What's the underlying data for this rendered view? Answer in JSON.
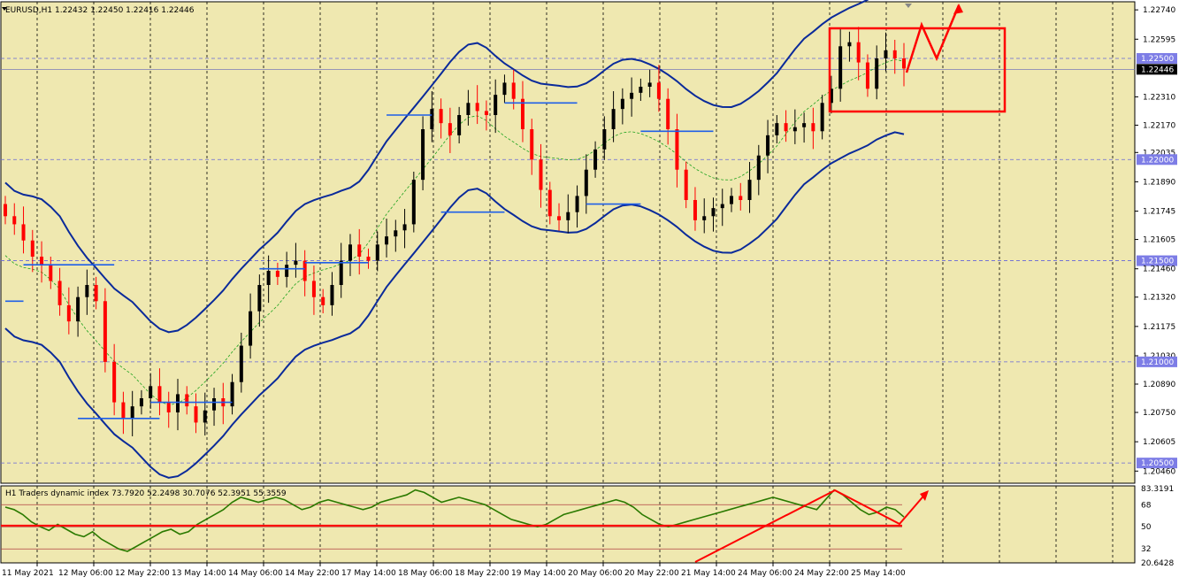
{
  "window": {
    "main_title": "EURUSD,H1",
    "main_ohlc": "1.22432 1.22450 1.22416 1.22446",
    "indicator_title": "H1 Traders dynamic index 73.7920 52.2498 30.7076 52.3951 55.3559"
  },
  "colors": {
    "background": "#efe8b0",
    "bull_candle": "#000000",
    "bear_candle": "#ff0000",
    "bands": "#0a2a9a",
    "mid_band": "#1fa31f",
    "level_line": "#1f5fe8",
    "drawing": "#ff0000",
    "rsi_line": "#2b7a00",
    "price_tag": "#7d7de6"
  },
  "chart_data": [
    {
      "type": "candlestick",
      "symbol": "EURUSD",
      "timeframe": "H1",
      "ylim": [
        1.204,
        1.2278
      ],
      "yticks": [
        "1.22740",
        "1.22595",
        "1.22500",
        "1.22446",
        "1.22310",
        "1.22170",
        "1.22035",
        "1.22000",
        "1.21890",
        "1.21745",
        "1.21605",
        "1.21500",
        "1.21460",
        "1.21320",
        "1.21175",
        "1.21030",
        "1.21000",
        "1.20890",
        "1.20750",
        "1.20605",
        "1.20500",
        "1.20460"
      ],
      "highlighted_levels": [
        "1.22500",
        "1.22000",
        "1.21500",
        "1.21000",
        "1.20500"
      ],
      "current_price": "1.22446",
      "xticks": [
        "11 May 2021",
        "12 May 06:00",
        "12 May 22:00",
        "13 May 14:00",
        "14 May 06:00",
        "14 May 22:00",
        "17 May 14:00",
        "18 May 06:00",
        "18 May 22:00",
        "19 May 14:00",
        "20 May 06:00",
        "20 May 22:00",
        "21 May 14:00",
        "24 May 06:00",
        "24 May 22:00",
        "25 May 14:00"
      ],
      "close_path": [
        1.2172,
        1.2168,
        1.216,
        1.2152,
        1.2148,
        1.214,
        1.2128,
        1.212,
        1.2132,
        1.2138,
        1.213,
        1.21,
        1.208,
        1.2072,
        1.2078,
        1.2082,
        1.2088,
        1.208,
        1.2075,
        1.2084,
        1.2078,
        1.207,
        1.2076,
        1.2082,
        1.2078,
        1.209,
        1.2108,
        1.2125,
        1.2138,
        1.2145,
        1.2142,
        1.2148,
        1.215,
        1.214,
        1.2132,
        1.2128,
        1.2138,
        1.215,
        1.2158,
        1.2152,
        1.215,
        1.2158,
        1.2162,
        1.2165,
        1.2168,
        1.219,
        1.2215,
        1.2225,
        1.2218,
        1.2212,
        1.2222,
        1.2228,
        1.2224,
        1.2222,
        1.2232,
        1.2238,
        1.223,
        1.2215,
        1.22,
        1.2185,
        1.2172,
        1.217,
        1.2174,
        1.2182,
        1.2195,
        1.2205,
        1.2215,
        1.2225,
        1.223,
        1.2233,
        1.2236,
        1.2238,
        1.223,
        1.2215,
        1.2195,
        1.218,
        1.217,
        1.2172,
        1.2176,
        1.2178,
        1.2182,
        1.218,
        1.219,
        1.2202,
        1.2212,
        1.2218,
        1.2214,
        1.2216,
        1.2218,
        1.2214,
        1.2228,
        1.2235,
        1.2256,
        1.2258,
        1.2248,
        1.2235,
        1.225,
        1.2254,
        1.225,
        1.2245
      ],
      "bands_half_width": 0.0036,
      "blue_levels": [
        {
          "price": 1.213,
          "from": 0,
          "to": 2
        },
        {
          "price": 1.2148,
          "from": 2,
          "to": 12
        },
        {
          "price": 1.2072,
          "from": 8,
          "to": 17
        },
        {
          "price": 1.208,
          "from": 16,
          "to": 25
        },
        {
          "price": 1.2146,
          "from": 28,
          "to": 33
        },
        {
          "price": 1.2149,
          "from": 33,
          "to": 40
        },
        {
          "price": 1.2222,
          "from": 42,
          "to": 47
        },
        {
          "price": 1.2174,
          "from": 48,
          "to": 55
        },
        {
          "price": 1.2228,
          "from": 55,
          "to": 63
        },
        {
          "price": 1.2178,
          "from": 64,
          "to": 70
        },
        {
          "price": 1.2214,
          "from": 70,
          "to": 78
        }
      ],
      "annotations": [
        "rectangle around consolidation",
        "zigzag arrow projection up"
      ]
    },
    {
      "type": "line",
      "name": "Traders dynamic index",
      "ylim": [
        20.6428,
        83.3191
      ],
      "yticks": [
        "83.3191",
        "68",
        "50",
        "32",
        "20.6428"
      ],
      "levels": [
        68,
        50,
        32
      ],
      "values": [
        66,
        64,
        60,
        54,
        50,
        47,
        52,
        48,
        44,
        42,
        46,
        40,
        36,
        32,
        30,
        34,
        38,
        42,
        46,
        48,
        44,
        46,
        52,
        56,
        60,
        64,
        70,
        74,
        72,
        70,
        72,
        74,
        72,
        68,
        64,
        66,
        70,
        72,
        70,
        68,
        66,
        64,
        66,
        70,
        72,
        74,
        76,
        80,
        78,
        74,
        70,
        72,
        74,
        72,
        70,
        68,
        64,
        60,
        56,
        54,
        52,
        50,
        52,
        56,
        60,
        62,
        64,
        66,
        68,
        70,
        72,
        70,
        66,
        60,
        56,
        52,
        50,
        52,
        54,
        56,
        58,
        60,
        62,
        64,
        66,
        68,
        70,
        72,
        74,
        72,
        70,
        68,
        66,
        64,
        72,
        80,
        76,
        70,
        64,
        60,
        62,
        66,
        64,
        58
      ]
    }
  ]
}
